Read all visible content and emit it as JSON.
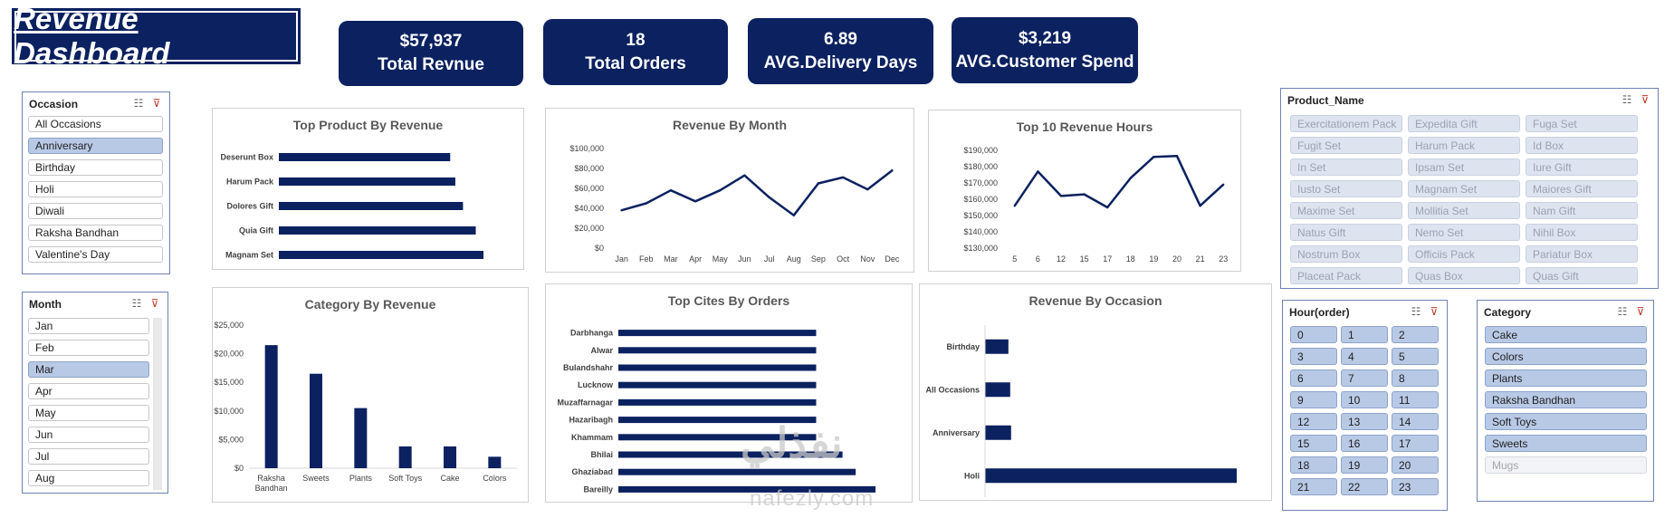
{
  "header": {
    "title": "Revenue Dashboard"
  },
  "kpis": [
    {
      "value": "$57,937",
      "label": "Total Revnue"
    },
    {
      "value": "18",
      "label": "Total Orders"
    },
    {
      "value": "6.89",
      "label": "AVG.Delivery Days"
    },
    {
      "value": "$3,219",
      "label": "AVG.Customer Spend"
    }
  ],
  "colors": {
    "navy": "#0b2160",
    "selected": "#b8c9e6"
  },
  "slicers": {
    "occasion": {
      "title": "Occasion",
      "items": [
        "All Occasions",
        "Anniversary",
        "Birthday",
        "Holi",
        "Diwali",
        "Raksha Bandhan",
        "Valentine's Day"
      ],
      "selected": [
        "Anniversary"
      ]
    },
    "month": {
      "title": "Month",
      "items": [
        "Jan",
        "Feb",
        "Mar",
        "Apr",
        "May",
        "Jun",
        "Jul",
        "Aug"
      ],
      "selected": [
        "Mar"
      ]
    },
    "product": {
      "title": "Product_Name",
      "items": [
        "Exercitationem Pack",
        "Expedita Gift",
        "Fuga Set",
        "Fugit Set",
        "Harum Pack",
        "Id Box",
        "In Set",
        "Ipsam Set",
        "Iure Gift",
        "Iusto Set",
        "Magnam Set",
        "Maiores Gift",
        "Maxime Set",
        "Mollitia Set",
        "Nam Gift",
        "Natus Gift",
        "Nemo Set",
        "Nihil Box",
        "Nostrum Box",
        "Officiis Pack",
        "Pariatur Box",
        "Placeat Pack",
        "Quas Box",
        "Quas Gift"
      ]
    },
    "hour": {
      "title": "Hour(order)",
      "items": [
        "0",
        "1",
        "2",
        "3",
        "4",
        "5",
        "6",
        "7",
        "8",
        "9",
        "10",
        "11",
        "12",
        "13",
        "14",
        "15",
        "16",
        "17",
        "18",
        "19",
        "20",
        "21",
        "22",
        "23"
      ]
    },
    "category": {
      "title": "Category",
      "items": [
        "Cake",
        "Colors",
        "Plants",
        "Raksha Bandhan",
        "Soft Toys",
        "Sweets",
        "Mugs"
      ],
      "nodata": [
        "Mugs"
      ]
    }
  },
  "chart_data": [
    {
      "id": "top-product",
      "type": "bar",
      "orientation": "horizontal",
      "title": "Top Product By Revenue",
      "categories": [
        "Deserunt Box",
        "Harum Pack",
        "Dolores Gift",
        "Quia Gift",
        "Magnam Set"
      ],
      "values": [
        3350,
        3450,
        3600,
        3850,
        4000
      ],
      "xlim": [
        0,
        4000
      ]
    },
    {
      "id": "rev-month",
      "type": "line",
      "title": "Revenue By Month",
      "categories": [
        "Jan",
        "Feb",
        "Mar",
        "Apr",
        "May",
        "Jun",
        "Jul",
        "Aug",
        "Sep",
        "Oct",
        "Nov",
        "Dec"
      ],
      "values": [
        38000,
        45000,
        58000,
        47000,
        58000,
        73000,
        51000,
        33000,
        65000,
        71000,
        59000,
        78000
      ],
      "yticks": [
        "$0",
        "$20,000",
        "$40,000",
        "$60,000",
        "$80,000",
        "$100,000"
      ],
      "ylim": [
        0,
        100000
      ]
    },
    {
      "id": "rev-hours",
      "type": "line",
      "title": "Top 10 Revenue Hours",
      "categories": [
        "5",
        "6",
        "12",
        "15",
        "17",
        "18",
        "19",
        "20",
        "21",
        "23"
      ],
      "values": [
        156000,
        177000,
        162000,
        163000,
        155000,
        173000,
        186000,
        186500,
        156000,
        169000
      ],
      "yticks": [
        "$130,000",
        "$140,000",
        "$150,000",
        "$160,000",
        "$170,000",
        "$180,000",
        "$190,000"
      ],
      "ylim": [
        130000,
        190000
      ]
    },
    {
      "id": "category-rev",
      "type": "bar",
      "title": "Category By Revenue",
      "categories": [
        "Raksha Bandhan",
        "Sweets",
        "Plants",
        "Soft Toys",
        "Cake",
        "Colors"
      ],
      "values": [
        21500,
        16500,
        10500,
        3800,
        3800,
        2000
      ],
      "yticks": [
        "$0",
        "$5,000",
        "$10,000",
        "$15,000",
        "$20,000",
        "$25,000"
      ],
      "ylim": [
        0,
        25000
      ]
    },
    {
      "id": "top-cities",
      "type": "bar",
      "orientation": "horizontal",
      "title": "Top Cites By Orders",
      "categories": [
        "Darbhanga",
        "Alwar",
        "Bulandshahr",
        "Lucknow",
        "Muzaffarnagar",
        "Hazaribagh",
        "Khammam",
        "Bhilai",
        "Ghaziabad",
        "Bareilly"
      ],
      "values": [
        3,
        3,
        3,
        3,
        3,
        3,
        3,
        3.4,
        3.6,
        3.9
      ],
      "xlim": [
        0,
        3.9
      ]
    },
    {
      "id": "rev-occasion",
      "type": "bar",
      "orientation": "horizontal",
      "title": "Revenue By Occasion",
      "categories": [
        "Birthday",
        "All Occasions",
        "Anniversary",
        "Holi"
      ],
      "values": [
        2600,
        2800,
        2900,
        28000
      ],
      "xlim": [
        0,
        28000
      ]
    }
  ],
  "watermark": {
    "brand": "نفذلي",
    "site": "nafezly.com"
  }
}
